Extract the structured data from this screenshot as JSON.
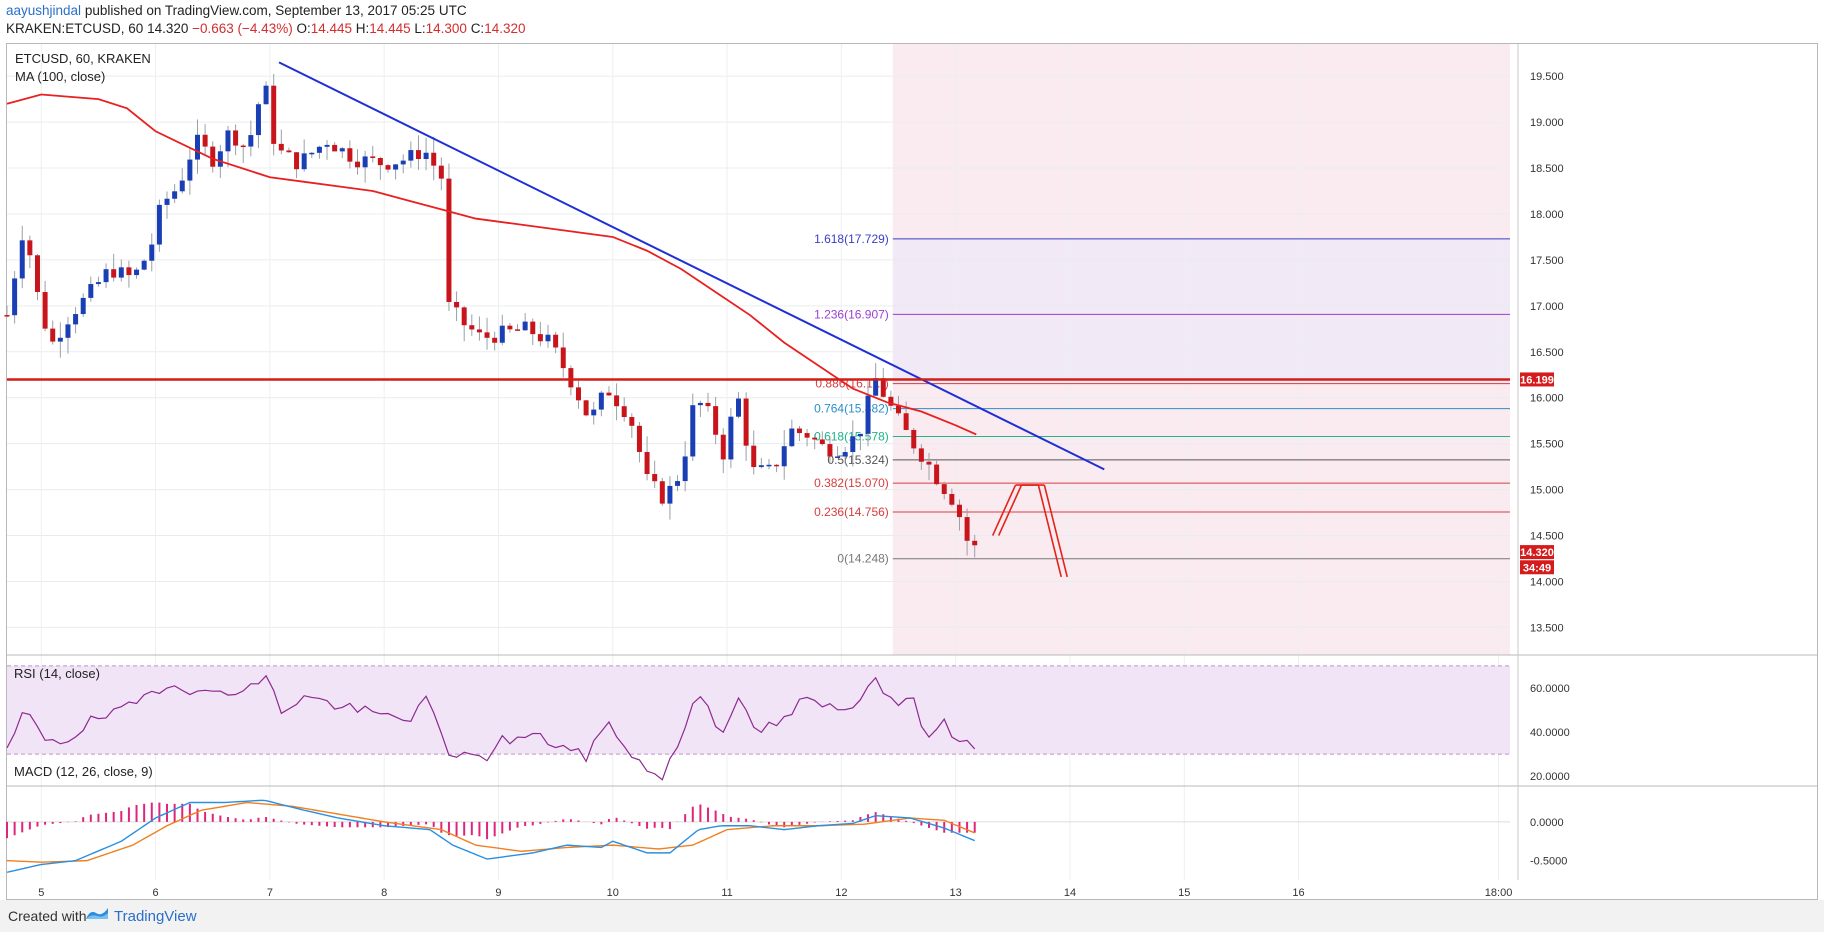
{
  "header": {
    "user": "aayushjindal",
    "published": "published on TradingView.com, September 13, 2017 05:25 UTC",
    "symbol": "KRAKEN:ETCUSD, 60",
    "last": "14.320",
    "change": "−0.663 (−4.43%)",
    "o_label": "O:",
    "o": "14.445",
    "h_label": "H:",
    "h": "14.445",
    "l_label": "L:",
    "l": "14.300",
    "c_label": "C:",
    "c": "14.320"
  },
  "main_panel": {
    "title": "ETCUSD, 60, KRAKEN",
    "indicator": "MA (100, close)"
  },
  "rsi_panel": {
    "title": "RSI (14, close)"
  },
  "macd_panel": {
    "title": "MACD (12, 26, close, 9)"
  },
  "footer": {
    "created_with": "Created with",
    "brand": "TradingView"
  },
  "colors": {
    "up": "#1a3fb5",
    "down": "#c8151b",
    "ma": "#e8201f",
    "trendline": "#1f2fd6",
    "resistance": "#d11f16",
    "rsi": "#8b2a8f",
    "rsi_band": "#f2e4f7",
    "macd": "#2a8fe0",
    "signal": "#f08020",
    "hist": "#e0247d",
    "fib_zone": "#f9e7ee"
  },
  "chart_data": [
    {
      "type": "candlestick",
      "title": "ETCUSD, 60, KRAKEN",
      "x_ticks": [
        "5",
        "6",
        "7",
        "8",
        "9",
        "10",
        "11",
        "12",
        "13",
        "14",
        "15",
        "16",
        "18:00"
      ],
      "x_tick_days": [
        5,
        6,
        7,
        8,
        9,
        10,
        11,
        12,
        13,
        14,
        15,
        16,
        17.75
      ],
      "x_range_days": [
        4.7,
        17.85
      ],
      "y_ticks": [
        "13.500",
        "14.000",
        "14.500",
        "15.000",
        "15.500",
        "16.000",
        "16.500",
        "17.000",
        "17.500",
        "18.000",
        "18.500",
        "19.000",
        "19.500"
      ],
      "ylim": [
        13.2,
        19.85
      ],
      "anchors": [
        {
          "t": 4.7,
          "p": 16.9
        },
        {
          "t": 4.85,
          "p": 17.9
        },
        {
          "t": 5.0,
          "p": 16.9
        },
        {
          "t": 5.1,
          "p": 16.6
        },
        {
          "t": 5.25,
          "p": 16.9
        },
        {
          "t": 5.4,
          "p": 17.1
        },
        {
          "t": 5.6,
          "p": 17.4
        },
        {
          "t": 5.8,
          "p": 17.3
        },
        {
          "t": 5.95,
          "p": 17.6
        },
        {
          "t": 6.05,
          "p": 18.1
        },
        {
          "t": 6.2,
          "p": 18.3
        },
        {
          "t": 6.35,
          "p": 18.8
        },
        {
          "t": 6.5,
          "p": 18.6
        },
        {
          "t": 6.65,
          "p": 18.9
        },
        {
          "t": 6.8,
          "p": 18.7
        },
        {
          "t": 6.95,
          "p": 19.45
        },
        {
          "t": 7.05,
          "p": 18.7
        },
        {
          "t": 7.25,
          "p": 18.55
        },
        {
          "t": 7.5,
          "p": 18.8
        },
        {
          "t": 7.75,
          "p": 18.6
        },
        {
          "t": 8.0,
          "p": 18.55
        },
        {
          "t": 8.2,
          "p": 18.6
        },
        {
          "t": 8.35,
          "p": 18.7
        },
        {
          "t": 8.5,
          "p": 18.4
        },
        {
          "t": 8.56,
          "p": 17.0
        },
        {
          "t": 8.7,
          "p": 16.8
        },
        {
          "t": 8.85,
          "p": 16.65
        },
        {
          "t": 9.05,
          "p": 16.7
        },
        {
          "t": 9.25,
          "p": 16.75
        },
        {
          "t": 9.45,
          "p": 16.6
        },
        {
          "t": 9.65,
          "p": 16.15
        },
        {
          "t": 9.8,
          "p": 15.75
        },
        {
          "t": 9.95,
          "p": 16.1
        },
        {
          "t": 10.15,
          "p": 15.8
        },
        {
          "t": 10.3,
          "p": 15.1
        },
        {
          "t": 10.45,
          "p": 14.9
        },
        {
          "t": 10.6,
          "p": 15.2
        },
        {
          "t": 10.72,
          "p": 16.0
        },
        {
          "t": 10.85,
          "p": 15.8
        },
        {
          "t": 10.98,
          "p": 15.35
        },
        {
          "t": 11.08,
          "p": 16.1
        },
        {
          "t": 11.22,
          "p": 15.2
        },
        {
          "t": 11.4,
          "p": 15.2
        },
        {
          "t": 11.55,
          "p": 15.65
        },
        {
          "t": 11.7,
          "p": 15.6
        },
        {
          "t": 11.85,
          "p": 15.45
        },
        {
          "t": 12.0,
          "p": 15.45
        },
        {
          "t": 12.15,
          "p": 15.6
        },
        {
          "t": 12.3,
          "p": 16.2
        },
        {
          "t": 12.45,
          "p": 15.85
        },
        {
          "t": 12.6,
          "p": 15.55
        },
        {
          "t": 12.75,
          "p": 15.3
        },
        {
          "t": 12.85,
          "p": 15.1
        },
        {
          "t": 13.0,
          "p": 14.85
        },
        {
          "t": 13.1,
          "p": 14.45
        },
        {
          "t": 13.2,
          "p": 14.32
        }
      ],
      "series": [
        {
          "name": "MA (100, close)",
          "points": [
            [
              4.7,
              19.2
            ],
            [
              5.0,
              19.3
            ],
            [
              5.5,
              19.25
            ],
            [
              5.75,
              19.15
            ],
            [
              6.0,
              18.9
            ],
            [
              6.25,
              18.75
            ],
            [
              6.5,
              18.6
            ],
            [
              6.75,
              18.5
            ],
            [
              7.0,
              18.4
            ],
            [
              7.3,
              18.35
            ],
            [
              7.6,
              18.3
            ],
            [
              7.9,
              18.25
            ],
            [
              8.2,
              18.15
            ],
            [
              8.5,
              18.05
            ],
            [
              8.8,
              17.95
            ],
            [
              9.1,
              17.9
            ],
            [
              9.4,
              17.85
            ],
            [
              9.7,
              17.8
            ],
            [
              10.0,
              17.75
            ],
            [
              10.3,
              17.6
            ],
            [
              10.6,
              17.4
            ],
            [
              10.9,
              17.15
            ],
            [
              11.2,
              16.9
            ],
            [
              11.5,
              16.6
            ],
            [
              11.8,
              16.35
            ],
            [
              12.1,
              16.1
            ],
            [
              12.4,
              15.95
            ],
            [
              12.7,
              15.85
            ],
            [
              13.0,
              15.7
            ],
            [
              13.18,
              15.6
            ]
          ]
        },
        {
          "name": "Trendline",
          "points": [
            [
              7.08,
              19.65
            ],
            [
              14.3,
              15.22
            ]
          ]
        },
        {
          "name": "Resistance",
          "value": 16.199
        }
      ],
      "fibonacci": {
        "zone_start": 12.45,
        "levels": [
          {
            "ratio": "1.618",
            "value": "17.729",
            "v": 17.729,
            "color": "#3b3ec7"
          },
          {
            "ratio": "1.236",
            "value": "16.907",
            "v": 16.907,
            "color": "#9a3fd0"
          },
          {
            "ratio": "0.886",
            "value": "16.1…",
            "v": 16.153,
            "color": "#d83d3d"
          },
          {
            "ratio": "0.764",
            "value": "15.882",
            "v": 15.882,
            "color": "#2a8fc9"
          },
          {
            "ratio": "0.618",
            "value": "15.578",
            "v": 15.578,
            "color": "#1fb48a"
          },
          {
            "ratio": "0.5",
            "value": "15.324",
            "v": 15.324,
            "color": "#555555"
          },
          {
            "ratio": "0.382",
            "value": "15.070",
            "v": 15.07,
            "color": "#d83d3d"
          },
          {
            "ratio": "0.236",
            "value": "14.756",
            "v": 14.756,
            "color": "#d83d3d"
          },
          {
            "ratio": "0",
            "value": "14.248",
            "v": 14.248,
            "color": "#777777"
          }
        ]
      },
      "price_badges": [
        {
          "label": "16.199",
          "v": 16.199
        },
        {
          "label": "14.320",
          "v": 14.32
        },
        {
          "label": "34:49",
          "v": 14.155
        }
      ],
      "projection": [
        [
          13.35,
          14.5
        ],
        [
          13.55,
          15.05
        ],
        [
          13.75,
          15.05
        ],
        [
          13.95,
          14.05
        ]
      ]
    },
    {
      "type": "line",
      "title": "RSI (14, close)",
      "y_ticks": [
        "20.0000",
        "40.0000",
        "60.0000"
      ],
      "ylim": [
        16,
        74
      ],
      "band": [
        30,
        70
      ],
      "anchors": [
        {
          "t": 4.7,
          "v": 30
        },
        {
          "t": 4.85,
          "v": 50
        },
        {
          "t": 5.0,
          "v": 38
        },
        {
          "t": 5.2,
          "v": 36
        },
        {
          "t": 5.45,
          "v": 45
        },
        {
          "t": 5.75,
          "v": 50
        },
        {
          "t": 6.0,
          "v": 60
        },
        {
          "t": 6.2,
          "v": 63
        },
        {
          "t": 6.4,
          "v": 56
        },
        {
          "t": 6.6,
          "v": 60
        },
        {
          "t": 6.8,
          "v": 58
        },
        {
          "t": 6.95,
          "v": 66
        },
        {
          "t": 7.1,
          "v": 50
        },
        {
          "t": 7.3,
          "v": 56
        },
        {
          "t": 7.6,
          "v": 52
        },
        {
          "t": 7.9,
          "v": 48
        },
        {
          "t": 8.2,
          "v": 46
        },
        {
          "t": 8.4,
          "v": 55
        },
        {
          "t": 8.56,
          "v": 27
        },
        {
          "t": 8.7,
          "v": 33
        },
        {
          "t": 8.85,
          "v": 26
        },
        {
          "t": 9.0,
          "v": 36
        },
        {
          "t": 9.3,
          "v": 38
        },
        {
          "t": 9.55,
          "v": 34
        },
        {
          "t": 9.75,
          "v": 28
        },
        {
          "t": 9.95,
          "v": 44
        },
        {
          "t": 10.15,
          "v": 32
        },
        {
          "t": 10.3,
          "v": 22
        },
        {
          "t": 10.45,
          "v": 20
        },
        {
          "t": 10.6,
          "v": 38
        },
        {
          "t": 10.75,
          "v": 60
        },
        {
          "t": 10.95,
          "v": 40
        },
        {
          "t": 11.08,
          "v": 55
        },
        {
          "t": 11.25,
          "v": 40
        },
        {
          "t": 11.5,
          "v": 45
        },
        {
          "t": 11.65,
          "v": 54
        },
        {
          "t": 11.85,
          "v": 52
        },
        {
          "t": 12.0,
          "v": 49
        },
        {
          "t": 12.2,
          "v": 58
        },
        {
          "t": 12.3,
          "v": 67
        },
        {
          "t": 12.45,
          "v": 52
        },
        {
          "t": 12.6,
          "v": 56
        },
        {
          "t": 12.75,
          "v": 40
        },
        {
          "t": 12.9,
          "v": 44
        },
        {
          "t": 13.05,
          "v": 36
        },
        {
          "t": 13.18,
          "v": 29
        }
      ]
    },
    {
      "type": "line",
      "title": "MACD (12, 26, close, 9)",
      "y_ticks": [
        "-0.5000",
        "0.0000"
      ],
      "ylim": [
        -0.75,
        0.45
      ],
      "series": [
        {
          "name": "MACD",
          "anchors": [
            {
              "t": 4.7,
              "v": -0.65
            },
            {
              "t": 5.0,
              "v": -0.55
            },
            {
              "t": 5.3,
              "v": -0.5
            },
            {
              "t": 5.7,
              "v": -0.25
            },
            {
              "t": 6.0,
              "v": 0.05
            },
            {
              "t": 6.3,
              "v": 0.25
            },
            {
              "t": 6.6,
              "v": 0.25
            },
            {
              "t": 6.95,
              "v": 0.28
            },
            {
              "t": 7.3,
              "v": 0.15
            },
            {
              "t": 7.6,
              "v": 0.05
            },
            {
              "t": 8.0,
              "v": -0.05
            },
            {
              "t": 8.4,
              "v": -0.1
            },
            {
              "t": 8.6,
              "v": -0.3
            },
            {
              "t": 8.9,
              "v": -0.48
            },
            {
              "t": 9.3,
              "v": -0.4
            },
            {
              "t": 9.6,
              "v": -0.3
            },
            {
              "t": 9.9,
              "v": -0.33
            },
            {
              "t": 10.0,
              "v": -0.25
            },
            {
              "t": 10.3,
              "v": -0.4
            },
            {
              "t": 10.5,
              "v": -0.4
            },
            {
              "t": 10.75,
              "v": -0.1
            },
            {
              "t": 10.95,
              "v": -0.05
            },
            {
              "t": 11.2,
              "v": -0.05
            },
            {
              "t": 11.5,
              "v": -0.1
            },
            {
              "t": 11.8,
              "v": -0.05
            },
            {
              "t": 12.1,
              "v": -0.02
            },
            {
              "t": 12.3,
              "v": 0.08
            },
            {
              "t": 12.6,
              "v": 0.05
            },
            {
              "t": 12.9,
              "v": -0.08
            },
            {
              "t": 13.18,
              "v": -0.25
            }
          ]
        },
        {
          "name": "Signal",
          "anchors": [
            {
              "t": 4.7,
              "v": -0.5
            },
            {
              "t": 5.0,
              "v": -0.52
            },
            {
              "t": 5.4,
              "v": -0.5
            },
            {
              "t": 5.8,
              "v": -0.3
            },
            {
              "t": 6.1,
              "v": -0.05
            },
            {
              "t": 6.4,
              "v": 0.15
            },
            {
              "t": 6.8,
              "v": 0.25
            },
            {
              "t": 7.2,
              "v": 0.2
            },
            {
              "t": 7.6,
              "v": 0.1
            },
            {
              "t": 8.0,
              "v": 0.0
            },
            {
              "t": 8.5,
              "v": -0.1
            },
            {
              "t": 8.8,
              "v": -0.3
            },
            {
              "t": 9.2,
              "v": -0.38
            },
            {
              "t": 9.6,
              "v": -0.33
            },
            {
              "t": 10.0,
              "v": -0.3
            },
            {
              "t": 10.4,
              "v": -0.35
            },
            {
              "t": 10.7,
              "v": -0.3
            },
            {
              "t": 11.0,
              "v": -0.1
            },
            {
              "t": 11.4,
              "v": -0.05
            },
            {
              "t": 11.8,
              "v": -0.05
            },
            {
              "t": 12.2,
              "v": -0.03
            },
            {
              "t": 12.6,
              "v": 0.05
            },
            {
              "t": 12.9,
              "v": 0.02
            },
            {
              "t": 13.18,
              "v": -0.15
            }
          ]
        }
      ]
    }
  ]
}
